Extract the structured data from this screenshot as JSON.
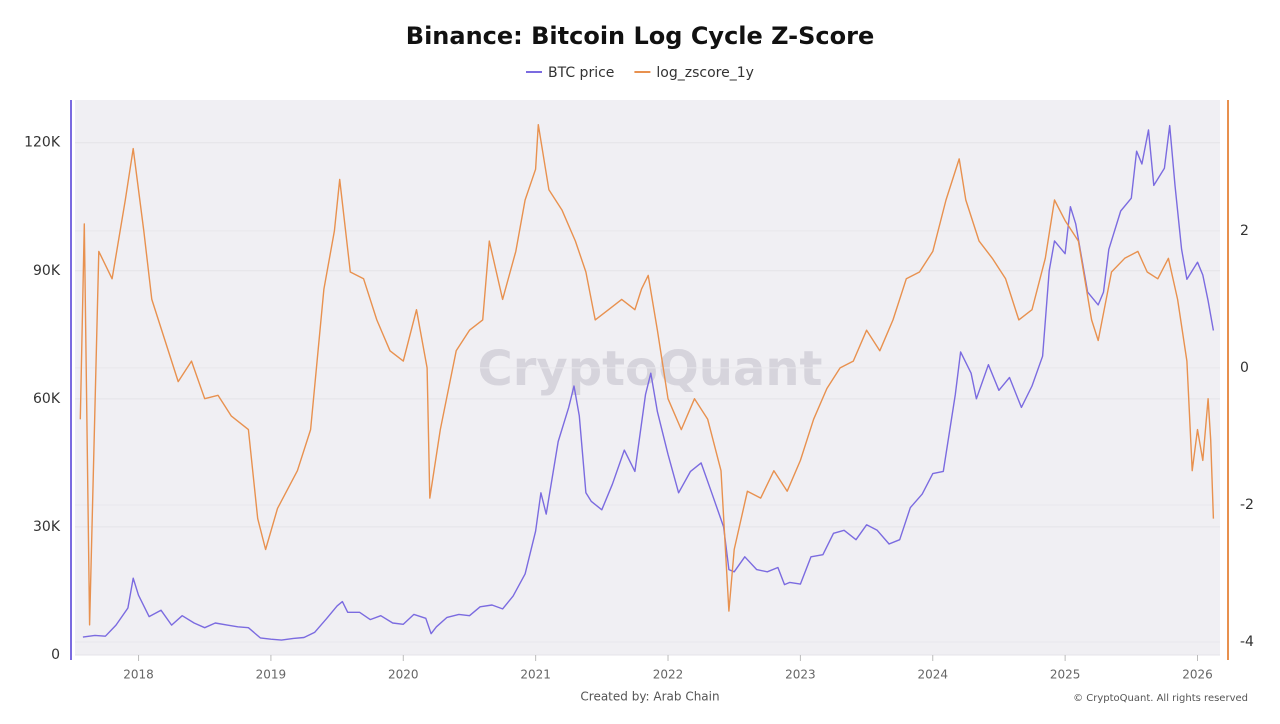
{
  "chart_data": {
    "type": "line",
    "title": "Binance: Bitcoin Log Cycle Z-Score",
    "watermark": "CryptoQuant",
    "credit": "Created by: Arab Chain",
    "copyright": "© CryptoQuant. All rights reserved",
    "xlim": [
      2017.52,
      2026.17
    ],
    "xticks": [
      2018,
      2019,
      2020,
      2021,
      2022,
      2023,
      2024,
      2025,
      2026
    ],
    "ylim": [
      0,
      130000
    ],
    "yticks": [
      0,
      {
        "value": 30000,
        "label": "30K"
      },
      {
        "value": 60000,
        "label": "60K"
      },
      {
        "value": 90000,
        "label": "90K"
      },
      {
        "value": 120000,
        "label": "120K"
      }
    ],
    "y2lim": [
      -4.19,
      3.91
    ],
    "y2ticks": [
      -4,
      -2,
      0,
      2
    ],
    "grid": true,
    "series": [
      {
        "name": "BTC price",
        "color": "#7b6be0",
        "x": [
          2017.58,
          2017.67,
          2017.75,
          2017.83,
          2017.92,
          2017.96,
          2018.0,
          2018.08,
          2018.17,
          2018.25,
          2018.33,
          2018.42,
          2018.5,
          2018.58,
          2018.67,
          2018.75,
          2018.83,
          2018.92,
          2019.0,
          2019.08,
          2019.17,
          2019.25,
          2019.33,
          2019.42,
          2019.5,
          2019.54,
          2019.58,
          2019.67,
          2019.75,
          2019.83,
          2019.92,
          2020.0,
          2020.08,
          2020.17,
          2020.21,
          2020.25,
          2020.33,
          2020.42,
          2020.5,
          2020.58,
          2020.67,
          2020.75,
          2020.83,
          2020.92,
          2021.0,
          2021.04,
          2021.08,
          2021.17,
          2021.25,
          2021.29,
          2021.33,
          2021.38,
          2021.42,
          2021.5,
          2021.58,
          2021.67,
          2021.75,
          2021.83,
          2021.87,
          2021.92,
          2022.0,
          2022.08,
          2022.17,
          2022.25,
          2022.33,
          2022.42,
          2022.46,
          2022.5,
          2022.58,
          2022.67,
          2022.75,
          2022.83,
          2022.88,
          2022.92,
          2023.0,
          2023.08,
          2023.17,
          2023.25,
          2023.33,
          2023.42,
          2023.5,
          2023.58,
          2023.67,
          2023.75,
          2023.83,
          2023.92,
          2024.0,
          2024.08,
          2024.17,
          2024.21,
          2024.29,
          2024.33,
          2024.42,
          2024.5,
          2024.58,
          2024.67,
          2024.75,
          2024.83,
          2024.88,
          2024.92,
          2025.0,
          2025.04,
          2025.08,
          2025.17,
          2025.25,
          2025.29,
          2025.33,
          2025.42,
          2025.5,
          2025.54,
          2025.58,
          2025.63,
          2025.67,
          2025.75,
          2025.79,
          2025.83,
          2025.88,
          2025.92,
          2026.0,
          2026.04,
          2026.08,
          2026.12
        ],
        "values": [
          4200,
          4600,
          4400,
          7000,
          11000,
          18000,
          14000,
          9000,
          10500,
          7000,
          9200,
          7500,
          6400,
          7500,
          7000,
          6600,
          6400,
          4000,
          3700,
          3500,
          3900,
          4100,
          5300,
          8500,
          11500,
          12500,
          10000,
          10000,
          8300,
          9200,
          7500,
          7200,
          9500,
          8600,
          5000,
          6600,
          8800,
          9500,
          9200,
          11300,
          11700,
          10800,
          13800,
          19000,
          29000,
          38000,
          33000,
          50000,
          58000,
          63000,
          56000,
          38000,
          36000,
          34000,
          40000,
          48000,
          43000,
          61000,
          66000,
          57000,
          47000,
          38000,
          43000,
          45000,
          38000,
          30000,
          20000,
          19500,
          23000,
          20000,
          19500,
          20500,
          16500,
          17000,
          16600,
          23000,
          23500,
          28500,
          29200,
          27000,
          30500,
          29200,
          26000,
          27000,
          34500,
          37700,
          42500,
          43000,
          61000,
          71000,
          66000,
          60000,
          68000,
          62000,
          65000,
          58000,
          63000,
          70000,
          90000,
          97000,
          94000,
          105000,
          101000,
          85000,
          82000,
          85000,
          95000,
          104000,
          107000,
          118000,
          115000,
          123000,
          110000,
          114000,
          124000,
          110000,
          95000,
          88000,
          92000,
          89000,
          83000,
          76000
        ]
      },
      {
        "name": "log_zscore_1y",
        "color": "#e8914f",
        "axis": "y2",
        "x": [
          2017.56,
          2017.59,
          2017.63,
          2017.7,
          2017.8,
          2017.9,
          2017.96,
          2018.04,
          2018.1,
          2018.2,
          2018.3,
          2018.4,
          2018.5,
          2018.6,
          2018.7,
          2018.83,
          2018.9,
          2018.96,
          2019.05,
          2019.2,
          2019.3,
          2019.4,
          2019.48,
          2019.52,
          2019.6,
          2019.7,
          2019.8,
          2019.9,
          2020.0,
          2020.1,
          2020.18,
          2020.2,
          2020.28,
          2020.4,
          2020.5,
          2020.6,
          2020.65,
          2020.75,
          2020.85,
          2020.92,
          2021.0,
          2021.02,
          2021.1,
          2021.2,
          2021.3,
          2021.38,
          2021.45,
          2021.55,
          2021.65,
          2021.75,
          2021.8,
          2021.85,
          2021.92,
          2022.0,
          2022.1,
          2022.2,
          2022.3,
          2022.4,
          2022.46,
          2022.5,
          2022.6,
          2022.7,
          2022.8,
          2022.9,
          2023.0,
          2023.1,
          2023.2,
          2023.3,
          2023.4,
          2023.5,
          2023.6,
          2023.7,
          2023.8,
          2023.9,
          2024.0,
          2024.1,
          2024.2,
          2024.25,
          2024.35,
          2024.45,
          2024.55,
          2024.65,
          2024.75,
          2024.85,
          2024.92,
          2025.0,
          2025.1,
          2025.2,
          2025.25,
          2025.35,
          2025.45,
          2025.55,
          2025.62,
          2025.7,
          2025.78,
          2025.85,
          2025.92,
          2025.96,
          2026.0,
          2026.04,
          2026.08,
          2026.1,
          2026.12
        ],
        "values": [
          -0.75,
          2.1,
          -3.75,
          1.7,
          1.3,
          2.45,
          3.2,
          2.0,
          1.0,
          0.4,
          -0.2,
          0.1,
          -0.45,
          -0.4,
          -0.7,
          -0.9,
          -2.2,
          -2.65,
          -2.05,
          -1.5,
          -0.9,
          1.15,
          2.0,
          2.75,
          1.4,
          1.3,
          0.7,
          0.25,
          0.1,
          0.85,
          0,
          -1.9,
          -0.9,
          0.25,
          0.55,
          0.7,
          1.85,
          1.0,
          1.7,
          2.45,
          2.9,
          3.55,
          2.6,
          2.3,
          1.85,
          1.4,
          0.7,
          0.85,
          1.0,
          0.85,
          1.15,
          1.35,
          0.55,
          -0.45,
          -0.9,
          -0.45,
          -0.75,
          -1.5,
          -3.55,
          -2.65,
          -1.8,
          -1.9,
          -1.5,
          -1.8,
          -1.35,
          -0.75,
          -0.3,
          0,
          0.1,
          0.55,
          0.25,
          0.7,
          1.3,
          1.4,
          1.7,
          2.45,
          3.05,
          2.45,
          1.85,
          1.6,
          1.3,
          0.7,
          0.85,
          1.6,
          2.45,
          2.15,
          1.85,
          0.7,
          0.4,
          1.4,
          1.6,
          1.7,
          1.4,
          1.3,
          1.6,
          1.0,
          0.1,
          -1.5,
          -0.9,
          -1.35,
          -0.45,
          -1.05,
          -2.2
        ]
      }
    ]
  }
}
